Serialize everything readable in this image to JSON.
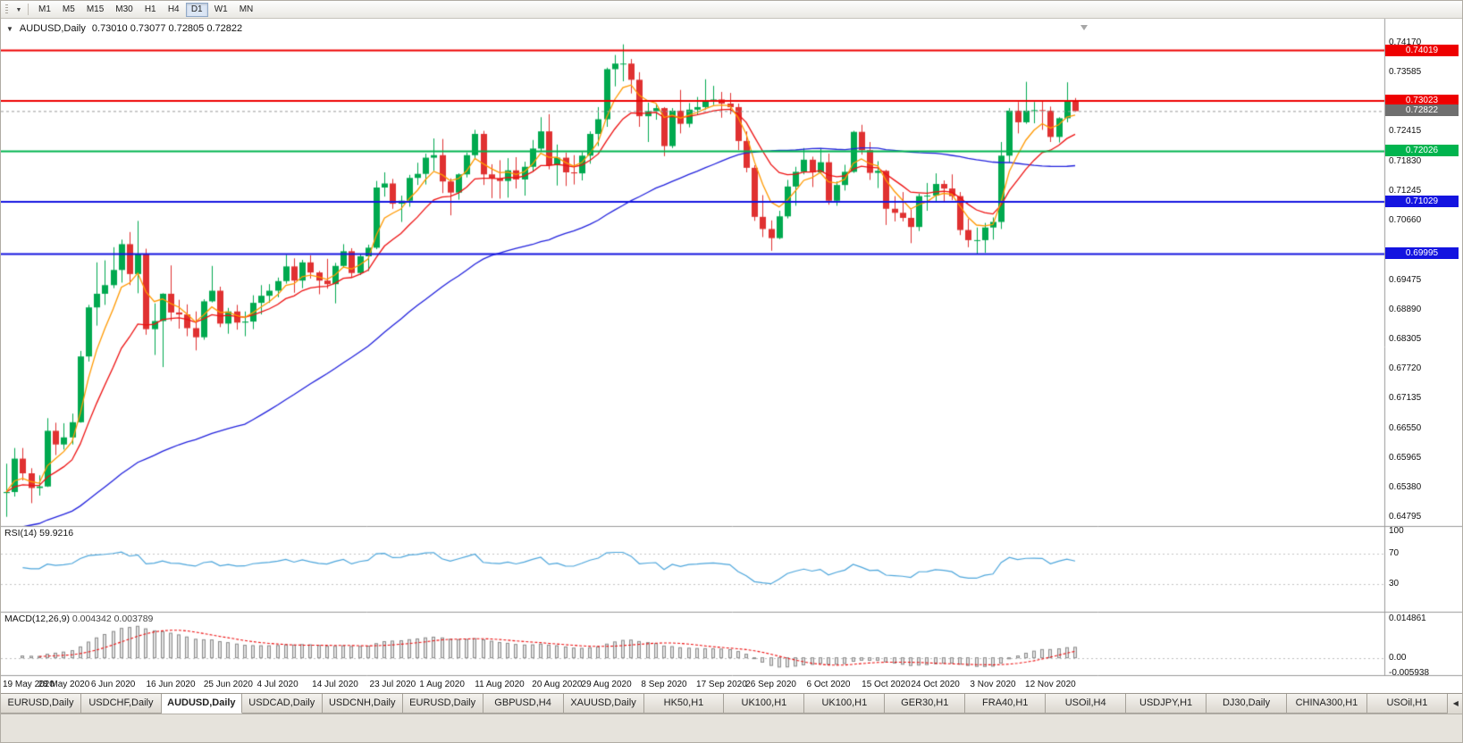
{
  "toolbar": {
    "timeframes": [
      "M1",
      "M5",
      "M15",
      "M30",
      "H1",
      "H4",
      "D1",
      "W1",
      "MN"
    ],
    "active_timeframe": "D1",
    "dropdown_icon": "▼"
  },
  "chart": {
    "title_symbol": "AUDUSD,Daily",
    "title_ohlc": "0.73010 0.73077 0.72805 0.72822",
    "rsi_name": "RSI(14)",
    "rsi_value": "59.9216",
    "macd_name": "MACD(12,26,9)",
    "macd_values": "0.004342 0.003789"
  },
  "chart_data": {
    "type": "candlestick",
    "symbol": "AUDUSD",
    "timeframe": "Daily",
    "up_color": "#00a94f",
    "down_color": "#e03131",
    "y_axis": {
      "min": 0.64795,
      "max": 0.7417,
      "tick_labels": [
        "0.74170",
        "0.73585",
        "0.72415",
        "0.71830",
        "0.71245",
        "0.70660",
        "0.69475",
        "0.68890",
        "0.68305",
        "0.67720",
        "0.67135",
        "0.66550",
        "0.65965",
        "0.65380",
        "0.64795"
      ]
    },
    "x_ticks": [
      {
        "i": 0,
        "label": "19 May 2020"
      },
      {
        "i": 7,
        "label": "28 May 2020"
      },
      {
        "i": 13,
        "label": "6 Jun 2020"
      },
      {
        "i": 20,
        "label": "16 Jun 2020"
      },
      {
        "i": 27,
        "label": "25 Jun 2020"
      },
      {
        "i": 33,
        "label": "4 Jul 2020"
      },
      {
        "i": 40,
        "label": "14 Jul 2020"
      },
      {
        "i": 47,
        "label": "23 Jul 2020"
      },
      {
        "i": 53,
        "label": "1 Aug 2020"
      },
      {
        "i": 60,
        "label": "11 Aug 2020"
      },
      {
        "i": 67,
        "label": "20 Aug 2020"
      },
      {
        "i": 73,
        "label": "29 Aug 2020"
      },
      {
        "i": 80,
        "label": "8 Sep 2020"
      },
      {
        "i": 87,
        "label": "17 Sep 2020"
      },
      {
        "i": 93,
        "label": "26 Sep 2020"
      },
      {
        "i": 100,
        "label": "6 Oct 2020"
      },
      {
        "i": 107,
        "label": "15 Oct 2020"
      },
      {
        "i": 113,
        "label": "24 Oct 2020"
      },
      {
        "i": 120,
        "label": "3 Nov 2020"
      },
      {
        "i": 127,
        "label": "12 Nov 2020"
      }
    ],
    "candles": [
      [
        0.6527,
        0.6585,
        0.648,
        0.6529
      ],
      [
        0.6529,
        0.6616,
        0.652,
        0.6595
      ],
      [
        0.6595,
        0.6616,
        0.6552,
        0.6566
      ],
      [
        0.6566,
        0.6576,
        0.6507,
        0.6537
      ],
      [
        0.6537,
        0.6562,
        0.6522,
        0.654
      ],
      [
        0.654,
        0.6675,
        0.6539,
        0.665
      ],
      [
        0.665,
        0.6666,
        0.6602,
        0.6623
      ],
      [
        0.6623,
        0.6665,
        0.6613,
        0.6637
      ],
      [
        0.6637,
        0.6684,
        0.6623,
        0.6667
      ],
      [
        0.6667,
        0.6808,
        0.6666,
        0.6797
      ],
      [
        0.6797,
        0.6899,
        0.6787,
        0.6894
      ],
      [
        0.6894,
        0.6983,
        0.6858,
        0.6921
      ],
      [
        0.6921,
        0.6987,
        0.6899,
        0.6938
      ],
      [
        0.6938,
        0.7013,
        0.6932,
        0.6968
      ],
      [
        0.6968,
        0.7028,
        0.6943,
        0.7019
      ],
      [
        0.7019,
        0.7043,
        0.6938,
        0.696
      ],
      [
        0.696,
        0.7065,
        0.6922,
        0.7
      ],
      [
        0.7,
        0.701,
        0.684,
        0.6851
      ],
      [
        0.6851,
        0.6902,
        0.68,
        0.6867
      ],
      [
        0.6867,
        0.6922,
        0.6776,
        0.6921
      ],
      [
        0.6921,
        0.6977,
        0.6867,
        0.6884
      ],
      [
        0.6884,
        0.6909,
        0.6852,
        0.688
      ],
      [
        0.688,
        0.69,
        0.6837,
        0.6853
      ],
      [
        0.6853,
        0.6886,
        0.6809,
        0.6835
      ],
      [
        0.6835,
        0.691,
        0.683,
        0.6906
      ],
      [
        0.6906,
        0.6976,
        0.6904,
        0.6927
      ],
      [
        0.6927,
        0.6935,
        0.6855,
        0.6862
      ],
      [
        0.6862,
        0.6893,
        0.6842,
        0.6886
      ],
      [
        0.6886,
        0.6899,
        0.685,
        0.6864
      ],
      [
        0.6864,
        0.6886,
        0.6837,
        0.6866
      ],
      [
        0.6866,
        0.6918,
        0.6851,
        0.6903
      ],
      [
        0.6903,
        0.6938,
        0.688,
        0.6917
      ],
      [
        0.6917,
        0.694,
        0.6903,
        0.6927
      ],
      [
        0.6927,
        0.6953,
        0.6914,
        0.6946
      ],
      [
        0.6946,
        0.6998,
        0.6941,
        0.6975
      ],
      [
        0.6975,
        0.6991,
        0.6923,
        0.6947
      ],
      [
        0.6947,
        0.6988,
        0.6932,
        0.6983
      ],
      [
        0.6983,
        0.6997,
        0.6951,
        0.6963
      ],
      [
        0.6963,
        0.6966,
        0.692,
        0.6947
      ],
      [
        0.6947,
        0.699,
        0.6931,
        0.694
      ],
      [
        0.694,
        0.6982,
        0.6902,
        0.6976
      ],
      [
        0.6976,
        0.7019,
        0.6972,
        0.7005
      ],
      [
        0.7005,
        0.7011,
        0.6954,
        0.6962
      ],
      [
        0.6962,
        0.7,
        0.6958,
        0.6995
      ],
      [
        0.6995,
        0.7018,
        0.6966,
        0.7012
      ],
      [
        0.7012,
        0.7144,
        0.7009,
        0.7131
      ],
      [
        0.7131,
        0.7161,
        0.7113,
        0.7139
      ],
      [
        0.7139,
        0.7148,
        0.7089,
        0.7099
      ],
      [
        0.7099,
        0.7115,
        0.7063,
        0.7105
      ],
      [
        0.7105,
        0.7156,
        0.7093,
        0.715
      ],
      [
        0.715,
        0.718,
        0.7136,
        0.7158
      ],
      [
        0.7158,
        0.7198,
        0.7137,
        0.719
      ],
      [
        0.719,
        0.7228,
        0.7164,
        0.7195
      ],
      [
        0.7195,
        0.7227,
        0.712,
        0.7143
      ],
      [
        0.7143,
        0.7149,
        0.7076,
        0.7121
      ],
      [
        0.7121,
        0.7159,
        0.7107,
        0.7157
      ],
      [
        0.7157,
        0.72,
        0.7151,
        0.7195
      ],
      [
        0.7195,
        0.7245,
        0.7187,
        0.7237
      ],
      [
        0.7237,
        0.7243,
        0.7136,
        0.7157
      ],
      [
        0.7157,
        0.7177,
        0.711,
        0.7149
      ],
      [
        0.7149,
        0.7185,
        0.7109,
        0.7144
      ],
      [
        0.7144,
        0.7189,
        0.7111,
        0.7165
      ],
      [
        0.7165,
        0.7191,
        0.7129,
        0.7147
      ],
      [
        0.7147,
        0.7182,
        0.7115,
        0.7172
      ],
      [
        0.7172,
        0.7225,
        0.7162,
        0.7208
      ],
      [
        0.7208,
        0.727,
        0.7202,
        0.7242
      ],
      [
        0.7242,
        0.7276,
        0.7167,
        0.7175
      ],
      [
        0.7175,
        0.7216,
        0.7135,
        0.719
      ],
      [
        0.719,
        0.72,
        0.7134,
        0.7161
      ],
      [
        0.7161,
        0.7195,
        0.7137,
        0.7159
      ],
      [
        0.7159,
        0.7201,
        0.7145,
        0.7194
      ],
      [
        0.7194,
        0.7242,
        0.7178,
        0.7237
      ],
      [
        0.7237,
        0.729,
        0.7213,
        0.7266
      ],
      [
        0.7266,
        0.7368,
        0.7251,
        0.7365
      ],
      [
        0.7365,
        0.7393,
        0.7331,
        0.7376
      ],
      [
        0.7376,
        0.7414,
        0.7341,
        0.7376
      ],
      [
        0.7376,
        0.7385,
        0.7317,
        0.7344
      ],
      [
        0.7344,
        0.7359,
        0.7251,
        0.7272
      ],
      [
        0.7272,
        0.7299,
        0.7221,
        0.7282
      ],
      [
        0.7282,
        0.7296,
        0.7265,
        0.7288
      ],
      [
        0.7288,
        0.729,
        0.7193,
        0.7213
      ],
      [
        0.7213,
        0.7288,
        0.7209,
        0.7283
      ],
      [
        0.7283,
        0.7324,
        0.7238,
        0.7257
      ],
      [
        0.7257,
        0.7298,
        0.725,
        0.7285
      ],
      [
        0.7285,
        0.731,
        0.7274,
        0.729
      ],
      [
        0.729,
        0.7345,
        0.7285,
        0.7301
      ],
      [
        0.7301,
        0.7332,
        0.7294,
        0.7305
      ],
      [
        0.7305,
        0.732,
        0.7269,
        0.7297
      ],
      [
        0.7297,
        0.7318,
        0.7276,
        0.729
      ],
      [
        0.729,
        0.7297,
        0.7205,
        0.7223
      ],
      [
        0.7223,
        0.7242,
        0.7161,
        0.717
      ],
      [
        0.717,
        0.7175,
        0.7065,
        0.7073
      ],
      [
        0.7073,
        0.7116,
        0.7033,
        0.7049
      ],
      [
        0.7049,
        0.7066,
        0.7006,
        0.7031
      ],
      [
        0.7031,
        0.7085,
        0.7029,
        0.7074
      ],
      [
        0.7074,
        0.7146,
        0.707,
        0.7133
      ],
      [
        0.7133,
        0.7172,
        0.7095,
        0.7162
      ],
      [
        0.7162,
        0.7209,
        0.7157,
        0.7186
      ],
      [
        0.7186,
        0.7192,
        0.7132,
        0.7161
      ],
      [
        0.7161,
        0.7209,
        0.7159,
        0.7181
      ],
      [
        0.7181,
        0.7198,
        0.7097,
        0.7105
      ],
      [
        0.7105,
        0.7143,
        0.7095,
        0.7136
      ],
      [
        0.7136,
        0.7176,
        0.7125,
        0.7162
      ],
      [
        0.7162,
        0.7243,
        0.716,
        0.7241
      ],
      [
        0.7241,
        0.7255,
        0.7196,
        0.7205
      ],
      [
        0.7205,
        0.7221,
        0.7146,
        0.716
      ],
      [
        0.716,
        0.7183,
        0.713,
        0.7164
      ],
      [
        0.7164,
        0.7166,
        0.7057,
        0.7089
      ],
      [
        0.7089,
        0.7114,
        0.7064,
        0.7081
      ],
      [
        0.7081,
        0.7122,
        0.7064,
        0.7071
      ],
      [
        0.7071,
        0.7088,
        0.7021,
        0.7053
      ],
      [
        0.7053,
        0.7119,
        0.7045,
        0.7114
      ],
      [
        0.7114,
        0.714,
        0.7085,
        0.7115
      ],
      [
        0.7115,
        0.7159,
        0.7103,
        0.7138
      ],
      [
        0.7138,
        0.7145,
        0.7102,
        0.7129
      ],
      [
        0.7129,
        0.7157,
        0.7106,
        0.7114
      ],
      [
        0.7114,
        0.7122,
        0.7037,
        0.7047
      ],
      [
        0.7047,
        0.7069,
        0.7013,
        0.7027
      ],
      [
        0.7027,
        0.7052,
        0.6999,
        0.7027
      ],
      [
        0.7027,
        0.7061,
        0.7002,
        0.7052
      ],
      [
        0.7052,
        0.7072,
        0.7028,
        0.7063
      ],
      [
        0.7063,
        0.7221,
        0.7049,
        0.7194
      ],
      [
        0.7194,
        0.7288,
        0.718,
        0.7283
      ],
      [
        0.7283,
        0.73,
        0.7238,
        0.726
      ],
      [
        0.726,
        0.734,
        0.7257,
        0.7283
      ],
      [
        0.7283,
        0.73,
        0.7258,
        0.7284
      ],
      [
        0.7284,
        0.7302,
        0.7245,
        0.7283
      ],
      [
        0.7283,
        0.7291,
        0.7221,
        0.7231
      ],
      [
        0.7231,
        0.727,
        0.722,
        0.7268
      ],
      [
        0.7268,
        0.7339,
        0.726,
        0.7301
      ],
      [
        0.7301,
        0.7308,
        0.7281,
        0.7282
      ]
    ],
    "horizontal_lines": [
      {
        "price": 0.74019,
        "label": "0.74019",
        "color": "#ee0000"
      },
      {
        "price": 0.73023,
        "label": "0.73023",
        "color": "#ee0000"
      },
      {
        "price": 0.72026,
        "label": "0.72026",
        "color": "#00b44e"
      },
      {
        "price": 0.71029,
        "label": "0.71029",
        "color": "#1414e0"
      },
      {
        "price": 0.69995,
        "label": "0.69995",
        "color": "#1414e0"
      }
    ],
    "current_price": {
      "value": 0.72822,
      "label": "0.72822",
      "box_color": "#6f6f6f",
      "line_color": "#9a9a9a"
    },
    "moving_averages": [
      {
        "period": 5,
        "method": "ema",
        "color": "#ff9900"
      },
      {
        "period": 12,
        "method": "ema",
        "color": "#ee1111"
      },
      {
        "period": 50,
        "method": "sma",
        "color": "#2222dd"
      }
    ],
    "rsi": {
      "period": 14,
      "current": 59.9216,
      "levels": [
        70,
        30
      ],
      "axis_labels": [
        "100",
        "70",
        "30"
      ],
      "range": [
        0,
        100
      ],
      "color": "#4da6dc"
    },
    "macd": {
      "fast": 12,
      "slow": 26,
      "signal_period": 9,
      "axis_labels": [
        "0.014861",
        "0.00",
        "-0.005938"
      ],
      "range": [
        -0.005938,
        0.014861
      ],
      "histogram_color": "#8c8c8c",
      "signal_color": "#ee1111"
    }
  },
  "tabs": {
    "items": [
      "EURUSD,Daily",
      "USDCHF,Daily",
      "AUDUSD,Daily",
      "USDCAD,Daily",
      "USDCNH,Daily",
      "EURUSD,Daily",
      "GBPUSD,H4",
      "XAUUSD,Daily",
      "HK50,H1",
      "UK100,H1",
      "UK100,H1",
      "GER30,H1",
      "FRA40,H1",
      "USOil,H4",
      "USDJPY,H1",
      "DJ30,Daily",
      "CHINA300,H1",
      "USOil,H1"
    ],
    "active_index": 2,
    "scroll_icon": "◀"
  }
}
